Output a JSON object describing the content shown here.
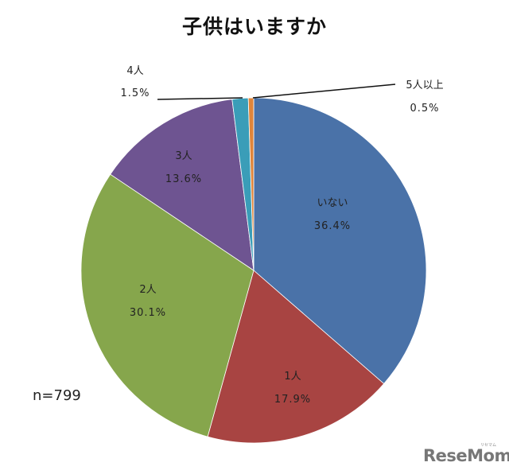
{
  "chart_data": {
    "type": "pie",
    "title": "子供はいますか",
    "sample_size": "n=799",
    "start_angle_deg": 0,
    "direction": "clockwise",
    "slices": [
      {
        "label": "いない",
        "value": 36.4,
        "pct_text": "36.4%",
        "color": "#4A72A8"
      },
      {
        "label": "1人",
        "value": 17.9,
        "pct_text": "17.9%",
        "color": "#A84442"
      },
      {
        "label": "2人",
        "value": 30.1,
        "pct_text": "30.1%",
        "color": "#86A64C"
      },
      {
        "label": "3人",
        "value": 13.6,
        "pct_text": "13.6%",
        "color": "#6E5491"
      },
      {
        "label": "4人",
        "value": 1.5,
        "pct_text": "1.5%",
        "color": "#3A9DB8"
      },
      {
        "label": "5人以上",
        "value": 0.5,
        "pct_text": "0.5%",
        "color": "#E0853A"
      }
    ],
    "legend": "none (data labels on slices)"
  },
  "watermark": {
    "text": "ReseMom",
    "sub": "リセマム"
  }
}
